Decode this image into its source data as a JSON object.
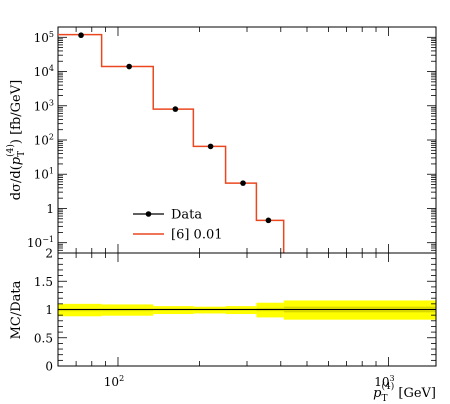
{
  "chart_data": [
    {
      "type": "line",
      "panel": "main",
      "xscale": "log",
      "yscale": "log",
      "xlim": [
        60,
        1500
      ],
      "ylim": [
        0.05,
        200000
      ],
      "ylabel": "dσ/d(p_T^(4)) [fb/GeV]",
      "yticks": [
        {
          "value": 0.1,
          "base": "10",
          "exp": "−1"
        },
        {
          "value": 1,
          "base": "1",
          "exp": ""
        },
        {
          "value": 10,
          "base": "10",
          "exp": "1"
        },
        {
          "value": 100,
          "base": "10",
          "exp": "2"
        },
        {
          "value": 1000,
          "base": "10",
          "exp": "3"
        },
        {
          "value": 10000,
          "base": "10",
          "exp": "4"
        },
        {
          "value": 100000,
          "base": "10",
          "exp": "5"
        }
      ],
      "legend": {
        "position": "lower-left"
      },
      "series": [
        {
          "name": "Data",
          "kind": "points",
          "color": "#000000",
          "x": [
            73,
            110,
            163,
            220,
            290,
            360
          ],
          "y": [
            115000,
            14000,
            800,
            65,
            5.5,
            0.45
          ]
        },
        {
          "name": "[6] 0.01",
          "kind": "step",
          "color": "#ea4720",
          "edges": [
            60,
            87,
            135,
            190,
            250,
            325,
            410
          ],
          "values": [
            120000,
            14000,
            800,
            65,
            5.5,
            0.45
          ]
        }
      ]
    },
    {
      "type": "area",
      "panel": "ratio",
      "xscale": "log",
      "xlim": [
        60,
        1500
      ],
      "ylim": [
        0,
        2
      ],
      "ylabel": "MC/Data",
      "xlabel": "p_T^(4) [GeV]",
      "yticks": [
        "0",
        "0.5",
        "1",
        "1.5",
        "2"
      ],
      "yticks_values": [
        0,
        0.5,
        1,
        1.5,
        2
      ],
      "xticks": [
        {
          "value": 100,
          "base": "10",
          "exp": "2"
        },
        {
          "value": 1000,
          "base": "10",
          "exp": "3"
        }
      ],
      "band": {
        "color": "#ffff00",
        "edges": [
          60,
          87,
          135,
          190,
          250,
          325,
          410,
          1500
        ],
        "lower": [
          0.88,
          0.89,
          0.92,
          0.93,
          0.92,
          0.86,
          0.82
        ],
        "upper": [
          1.1,
          1.09,
          1.06,
          1.05,
          1.06,
          1.12,
          1.16
        ]
      },
      "inner_band": {
        "color": "#d9d900",
        "edges": [
          60,
          87,
          135,
          190,
          250,
          325,
          410,
          1500
        ],
        "lower": [
          0.97,
          0.97,
          0.98,
          0.98,
          0.98,
          0.97,
          0.95
        ],
        "upper": [
          1.02,
          1.02,
          1.02,
          1.02,
          1.02,
          1.03,
          1.05
        ]
      },
      "reference": 1,
      "reference_color": "#000000"
    }
  ],
  "text": {
    "ylabel_main_parts": {
      "a": "dσ/d(",
      "p": "p",
      "sub": "T",
      "sup": "(4)",
      "b": ") [fb/GeV]"
    },
    "ylabel_ratio": "MC/Data",
    "xlabel_parts": {
      "p": "p",
      "sub": "T",
      "sup": "(4)",
      "unit": " [GeV]"
    },
    "legend_data": "Data",
    "legend_mc": "[6] 0.01"
  }
}
